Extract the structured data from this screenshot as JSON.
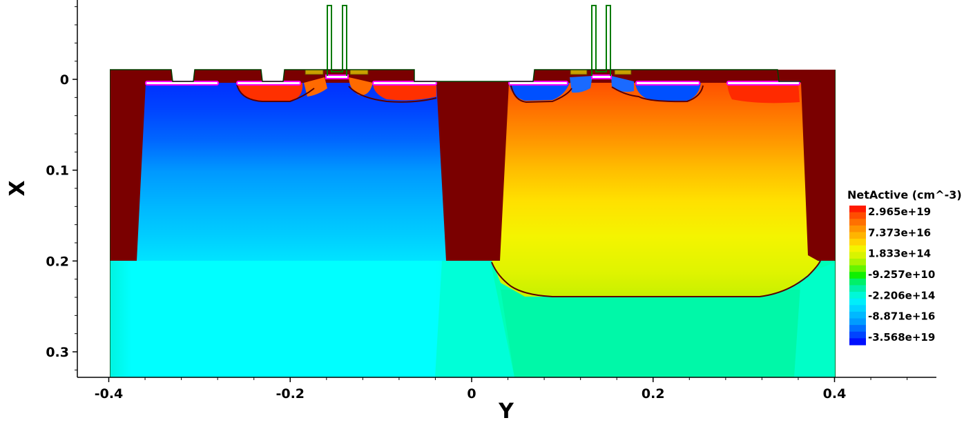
{
  "chart_data": {
    "type": "heatmap",
    "xlabel": "Y",
    "ylabel": "X",
    "xlim": [
      -0.49,
      0.51
    ],
    "ylim": [
      0.33,
      -0.087
    ],
    "x_ticks": [
      {
        "value": -0.4,
        "label": "-0.4"
      },
      {
        "value": -0.2,
        "label": "-0.2"
      },
      {
        "value": 0,
        "label": "0"
      },
      {
        "value": 0.2,
        "label": "0.2"
      },
      {
        "value": 0.4,
        "label": "0.4"
      }
    ],
    "y_ticks": [
      {
        "value": 0,
        "label": "0"
      },
      {
        "value": 0.1,
        "label": "0.1"
      },
      {
        "value": 0.2,
        "label": "0.2"
      },
      {
        "value": 0.3,
        "label": "0.3"
      }
    ],
    "colorbar": {
      "title": "NetActive (cm^-3)",
      "labels": [
        "2.965e+19",
        "7.373e+16",
        "1.833e+14",
        "-9.257e+10",
        "-2.206e+14",
        "-8.871e+16",
        "-3.568e+19"
      ],
      "colors": [
        "#ff1a00",
        "#ff4d00",
        "#ff7000",
        "#ff9400",
        "#ffb400",
        "#ffd400",
        "#f4f400",
        "#d8f400",
        "#aaf400",
        "#66f400",
        "#10f000",
        "#00f06a",
        "#00f0aa",
        "#00f8d8",
        "#00eefa",
        "#00d4ff",
        "#00b8ff",
        "#009cff",
        "#0070ff",
        "#0044ff",
        "#0010ff"
      ]
    },
    "regions": {
      "oxide_color": "#7a0000",
      "nwell_color": "#0099ff",
      "pwell_color": "#ff9900",
      "substrate_left_color": "#00ffff",
      "substrate_right_color": "#00ffb8"
    }
  }
}
